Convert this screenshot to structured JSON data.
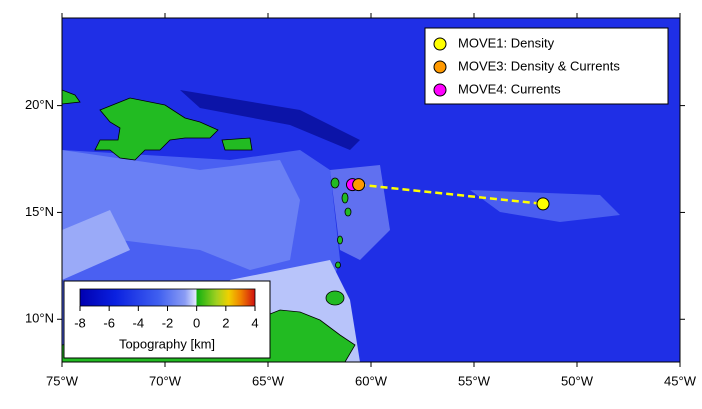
{
  "chart_data": {
    "type": "map",
    "xlim": [
      -75,
      -45
    ],
    "ylim": [
      8.0,
      24.1
    ],
    "xticks": [
      {
        "value": -75,
        "label": "75°W"
      },
      {
        "value": -70,
        "label": "70°W"
      },
      {
        "value": -65,
        "label": "65°W"
      },
      {
        "value": -60,
        "label": "60°W"
      },
      {
        "value": -55,
        "label": "55°W"
      },
      {
        "value": -50,
        "label": "50°W"
      },
      {
        "value": -45,
        "label": "45°W"
      }
    ],
    "yticks": [
      {
        "value": 10,
        "label": "10°N"
      },
      {
        "value": 15,
        "label": "15°N"
      },
      {
        "value": 20,
        "label": "20°N"
      }
    ],
    "series": [
      {
        "name": "MOVE1: Density",
        "color": "#ffff00",
        "x": [
          -51.65
        ],
        "y": [
          15.4
        ]
      },
      {
        "name": "MOVE3: Density & Currents",
        "color": "#ff9900",
        "x": [
          -60.6
        ],
        "y": [
          16.3
        ]
      },
      {
        "name": "MOVE4: Currents",
        "color": "#ff00ff",
        "x": [
          -60.9
        ],
        "y": [
          16.3
        ]
      }
    ],
    "legend_position": "upper right",
    "colorbar": {
      "label": "Topography [km]",
      "lim": [
        -8,
        4
      ],
      "ticks": [
        -8,
        -6,
        -4,
        -2,
        0,
        2,
        4
      ]
    }
  }
}
